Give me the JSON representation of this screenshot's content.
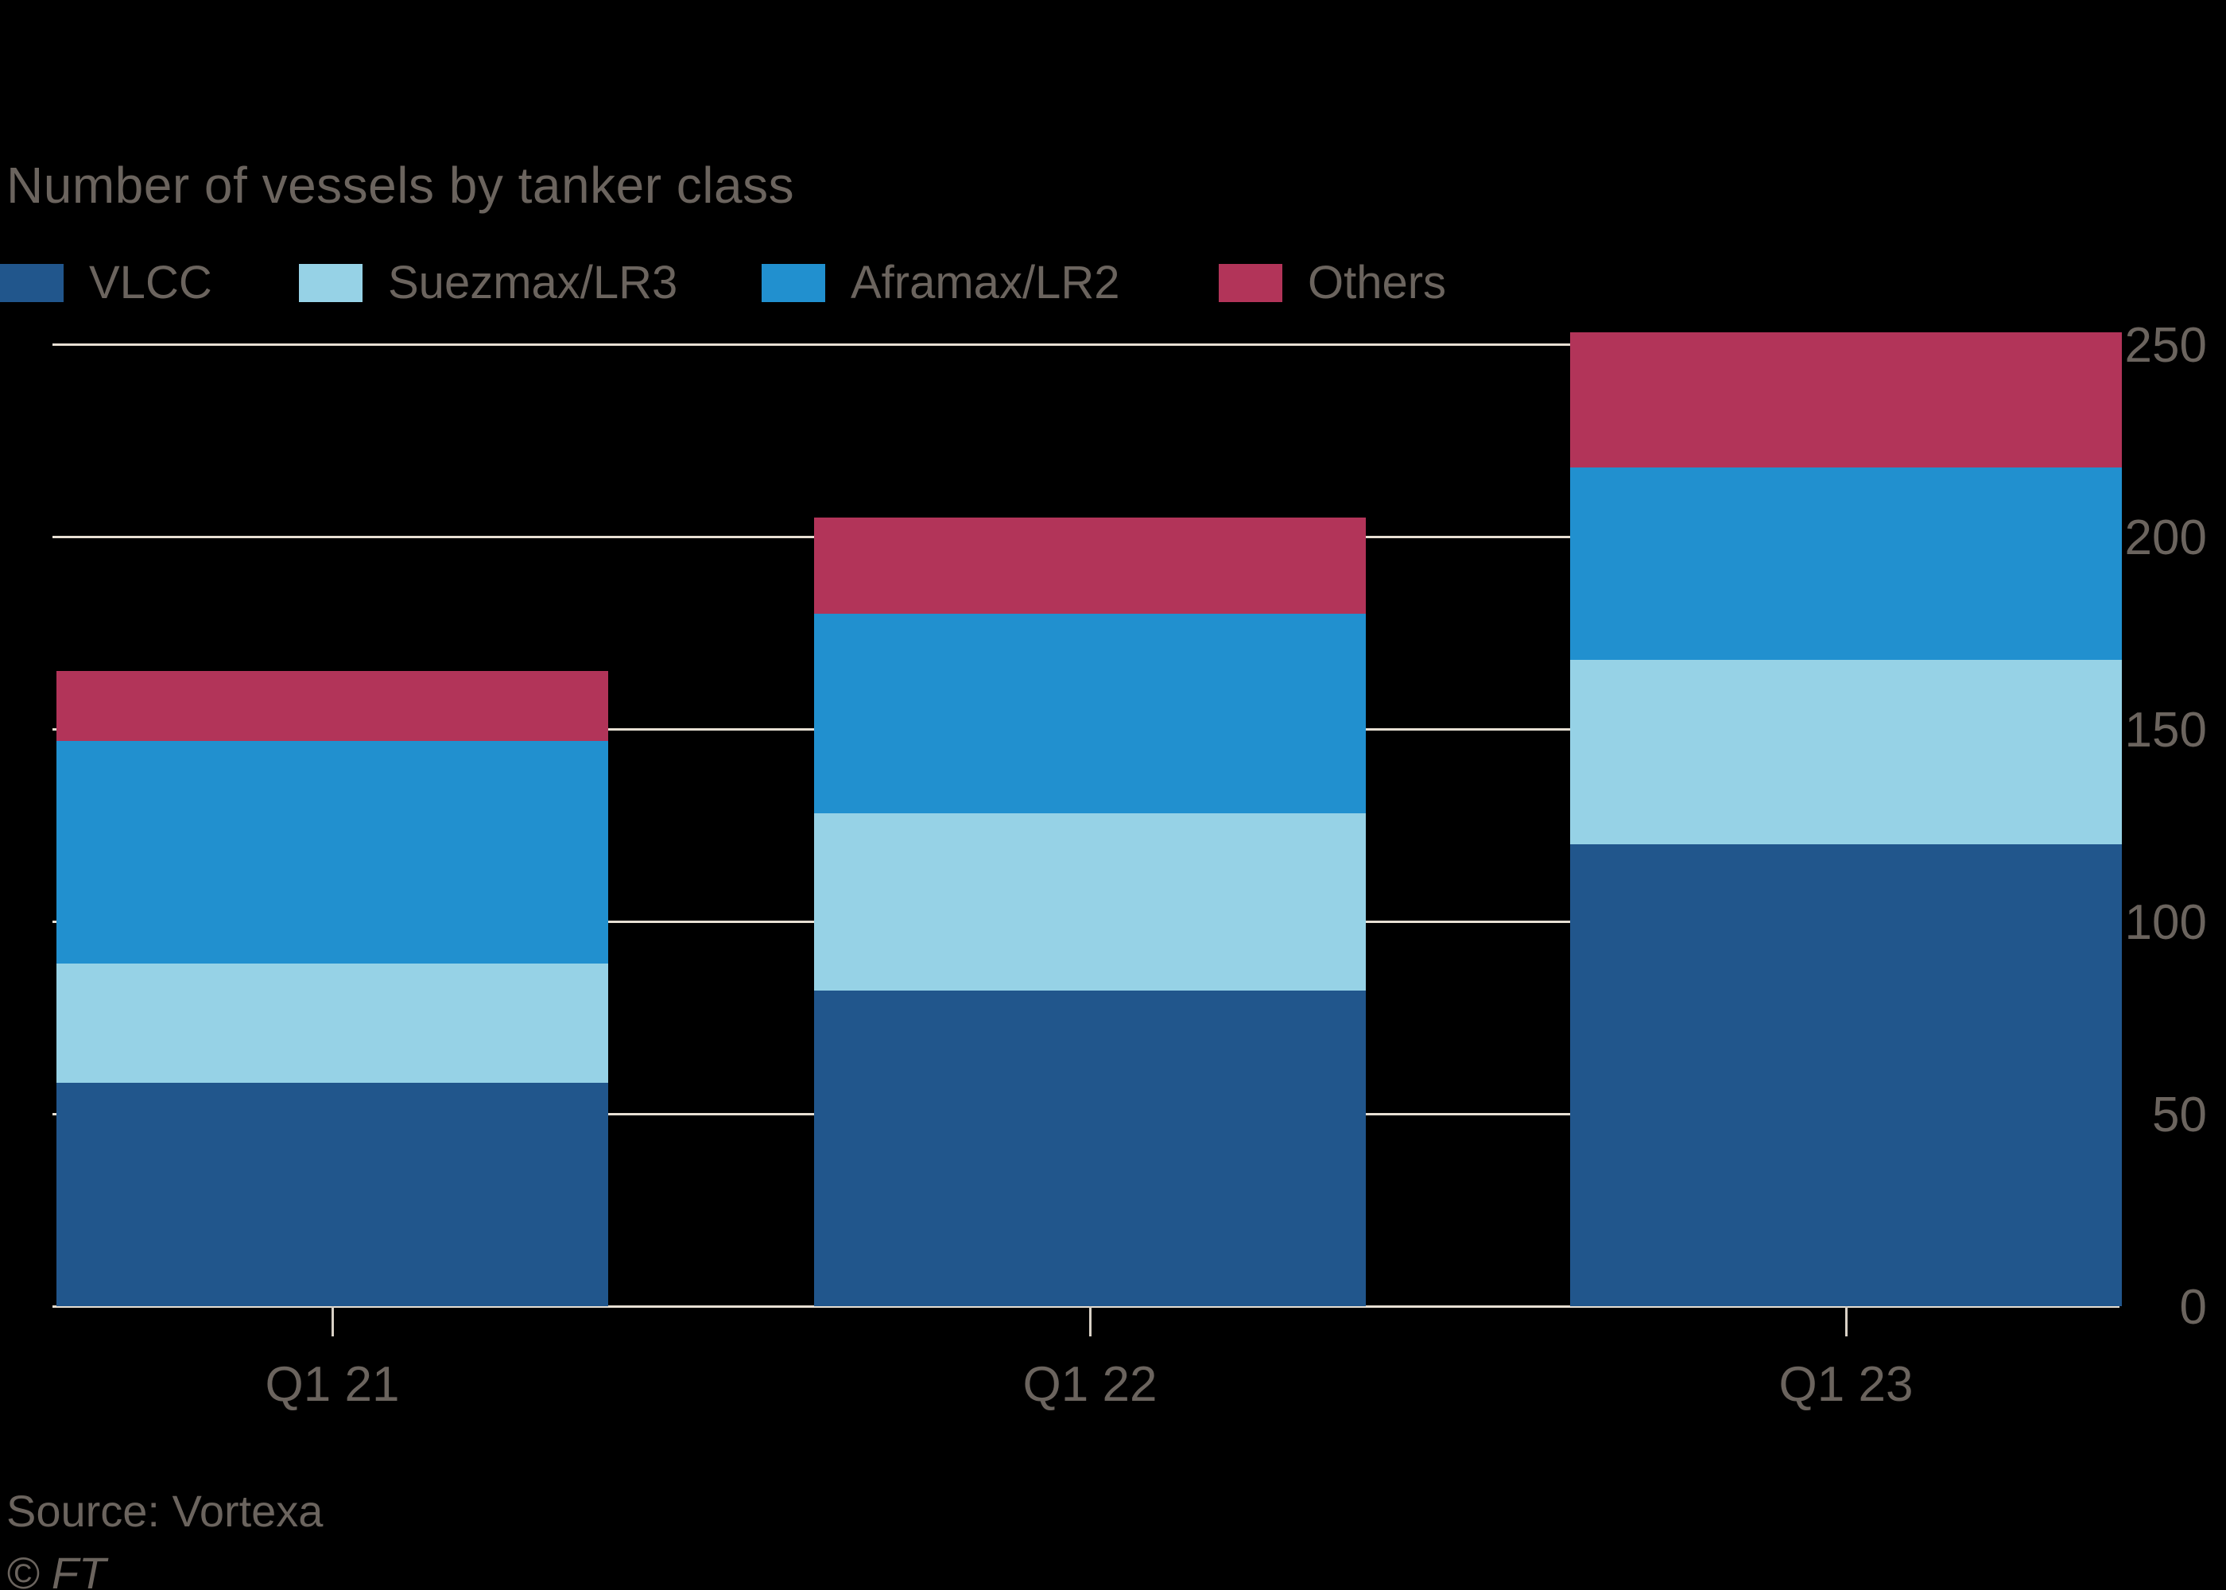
{
  "title": "Number of vessels by tanker class",
  "source_note": "Source: Vortexa",
  "copyright": "© FT",
  "colors": {
    "background": "#000000",
    "text": "#6B645E",
    "gridline": "#E7DFD3",
    "tick": "#D9D1C6"
  },
  "chart_data": {
    "type": "bar",
    "stacked": true,
    "title": "Number of vessels by tanker class",
    "categories": [
      "Q1 21",
      "Q1 22",
      "Q1 23"
    ],
    "series": [
      {
        "name": "VLCC",
        "color": "#21568C",
        "values": [
          58,
          82,
          120
        ]
      },
      {
        "name": "Suezmax/LR3",
        "color": "#96D2E6",
        "values": [
          31,
          46,
          48
        ]
      },
      {
        "name": "Aframax/LR2",
        "color": "#2190CF",
        "values": [
          58,
          52,
          50
        ]
      },
      {
        "name": "Others",
        "color": "#B23459",
        "values": [
          18,
          25,
          35
        ]
      }
    ],
    "stack_totals": [
      165,
      205,
      253
    ],
    "xlabel": "",
    "ylabel": "",
    "ylim": [
      0,
      250
    ],
    "yticks": [
      0,
      50,
      100,
      150,
      200,
      250
    ],
    "grid": "horizontal",
    "legend_position": "top",
    "y_axis_side": "right"
  }
}
